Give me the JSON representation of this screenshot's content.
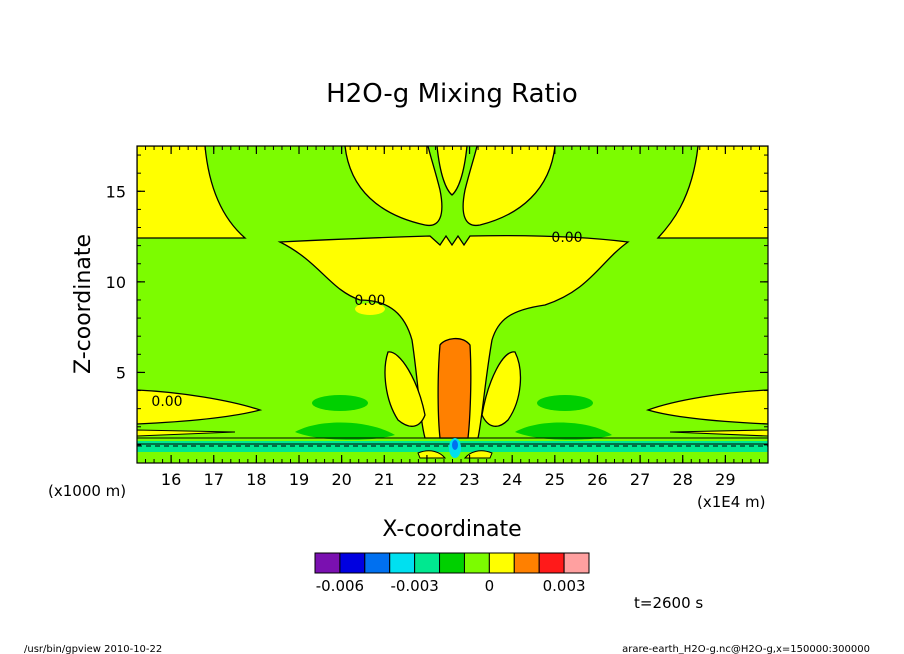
{
  "chart_data": {
    "type": "heatmap",
    "title": "H2O-g Mixing Ratio",
    "xlabel": "X-coordinate",
    "ylabel": "Z-coordinate",
    "x_unit": "(x1E4 m)",
    "y_unit": "(x1000 m)",
    "xlim": [
      15.2,
      30.0
    ],
    "ylim": [
      0.0,
      17.5
    ],
    "x_ticks": [
      "16",
      "17",
      "18",
      "19",
      "20",
      "21",
      "22",
      "23",
      "24",
      "25",
      "26",
      "27",
      "28",
      "29"
    ],
    "y_ticks": [
      "5",
      "10",
      "15"
    ],
    "x_tick_values": [
      16,
      17,
      18,
      19,
      20,
      21,
      22,
      23,
      24,
      25,
      26,
      27,
      28,
      29
    ],
    "y_tick_values": [
      5,
      10,
      15
    ],
    "contour_labels": [
      "0.00",
      "0.00",
      "0.00"
    ],
    "colorbar": {
      "tick_labels": [
        "-0.006",
        "-0.003",
        "0",
        "0.003"
      ],
      "levels": [
        -0.006,
        -0.005,
        -0.004,
        -0.003,
        -0.002,
        -0.001,
        0,
        0.001,
        0.002,
        0.003
      ],
      "colors": [
        "#7a10b0",
        "#0000e0",
        "#0070f0",
        "#00e0f0",
        "#00e890",
        "#00d000",
        "#7cfc00",
        "#ffff00",
        "#ff8000",
        "#ff1a1a",
        "#ffa0a0"
      ]
    },
    "time_label": "t=2600 s"
  },
  "footer": {
    "left": "/usr/bin/gpview   2010-10-22",
    "right": "arare-earth_H2O-g.nc@H2O-g,x=150000:300000"
  }
}
